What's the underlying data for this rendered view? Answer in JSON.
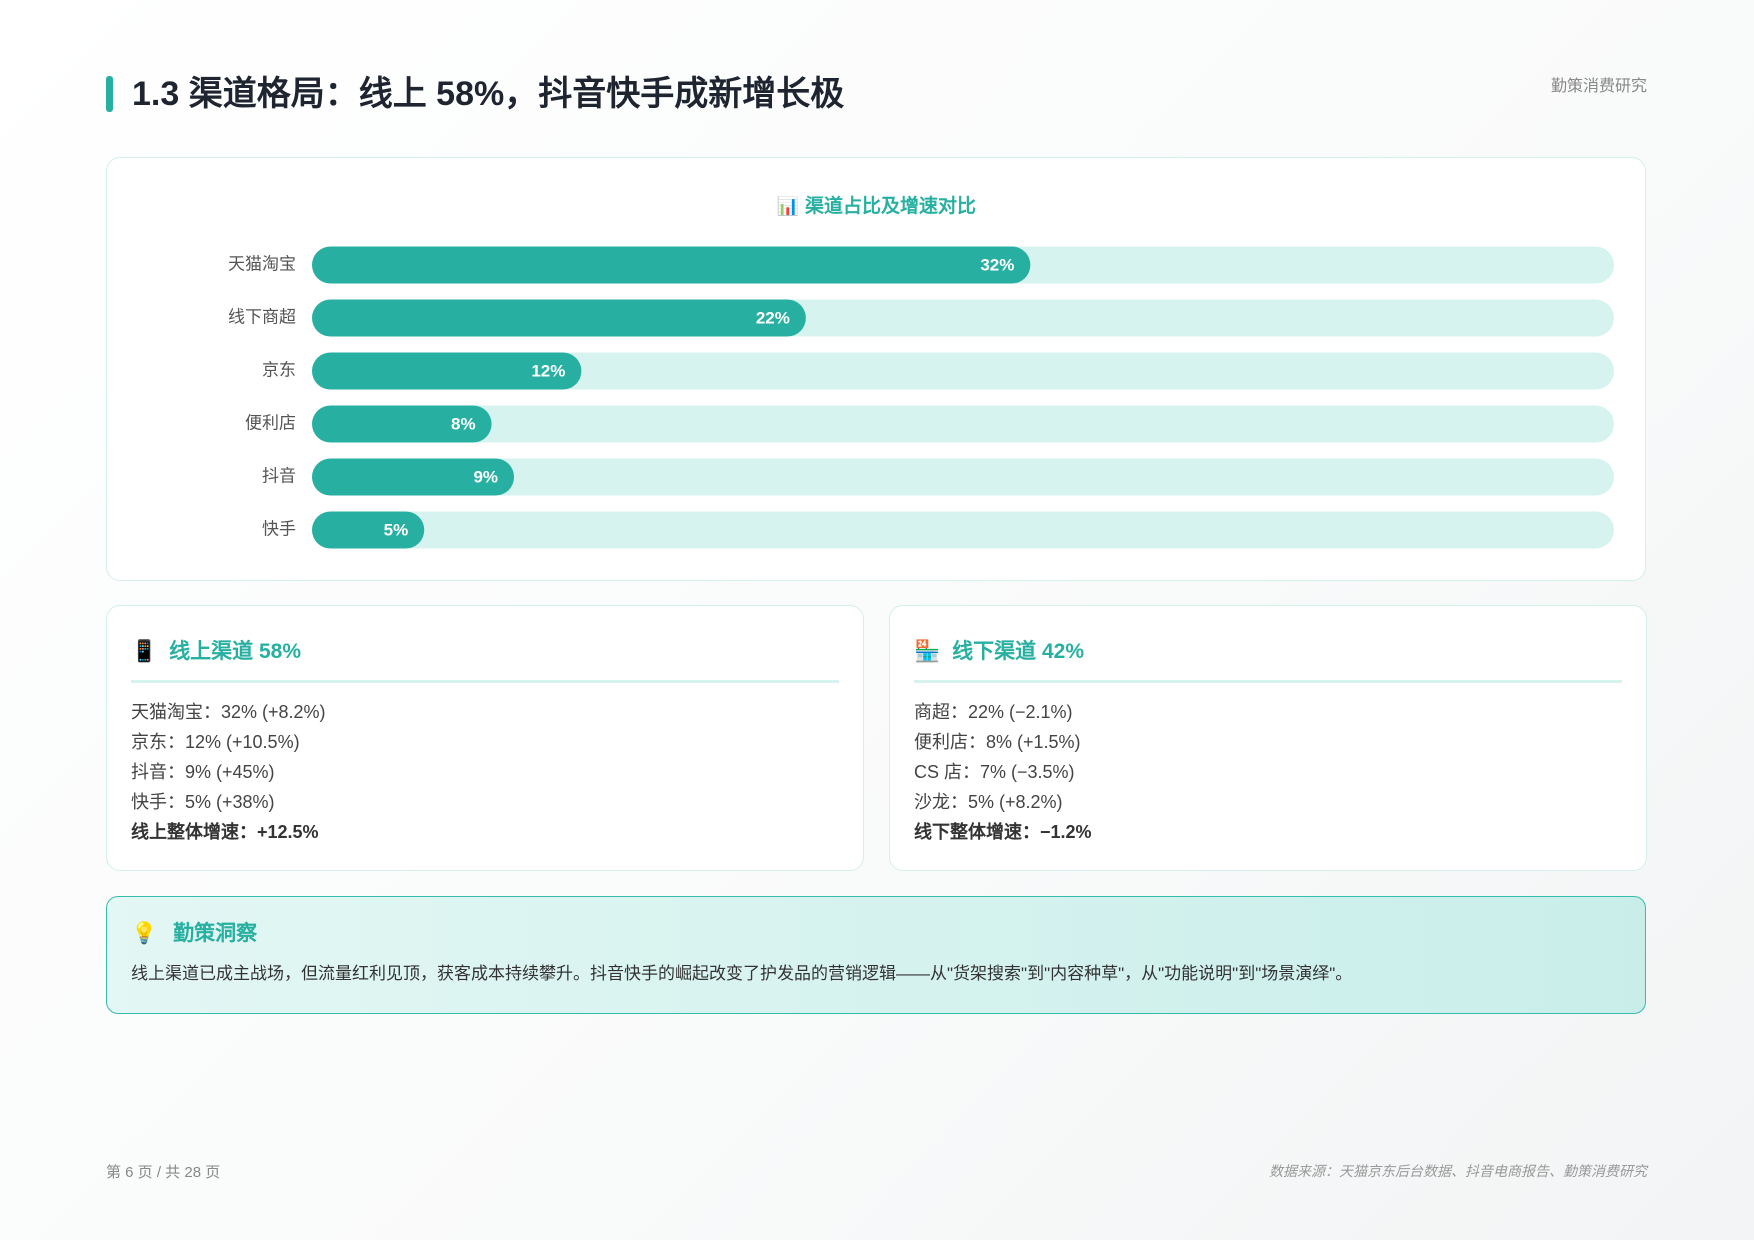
{
  "header": {
    "title": "1.3 渠道格局：线上 58%，抖音快手成新增长极",
    "brand": "勤策消费研究"
  },
  "chart_data": {
    "type": "bar",
    "orientation": "horizontal",
    "title_icon": "📊",
    "title": "渠道占比及增速对比",
    "categories": [
      "天猫淘宝",
      "线下商超",
      "京东",
      "便利店",
      "抖音",
      "快手"
    ],
    "values": [
      32,
      22,
      12,
      8,
      9,
      5
    ],
    "value_labels": [
      "32%",
      "22%",
      "12%",
      "8%",
      "9%",
      "5%"
    ],
    "color": "#27b0a1",
    "track_color": "#d6f3ef",
    "xlim": [
      0,
      58
    ]
  },
  "cards": [
    {
      "icon": "📱",
      "title": "线上渠道 58%",
      "items": [
        "天猫淘宝：32% (+8.2%)",
        "京东：12% (+10.5%)",
        "抖音：9% (+45%)",
        "快手：5% (+38%)"
      ],
      "summary": "线上整体增速：+12.5%"
    },
    {
      "icon": "🏪",
      "title": "线下渠道 42%",
      "items": [
        "商超：22% (−2.1%)",
        "便利店：8% (+1.5%)",
        "CS 店：7% (−3.5%)",
        "沙龙：5% (+8.2%)"
      ],
      "summary": "线下整体增速：−1.2%"
    }
  ],
  "insight": {
    "icon": "💡",
    "title": "勤策洞察",
    "text": "线上渠道已成主战场，但流量红利见顶，获客成本持续攀升。抖音快手的崛起改变了护发品的营销逻辑——从\"货架搜索\"到\"内容种草\"，从\"功能说明\"到\"场景演绎\"。"
  },
  "footer": {
    "page": "第 6 页 / 共 28 页",
    "source": "数据来源：天猫京东后台数据、抖音电商报告、勤策消费研究"
  }
}
